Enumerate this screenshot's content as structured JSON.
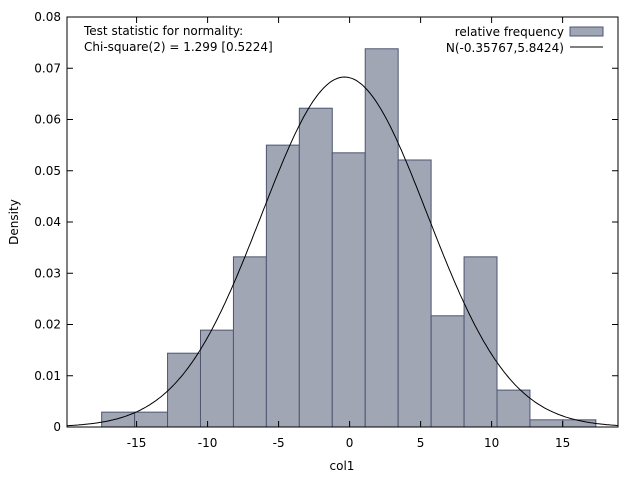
{
  "chart_data": {
    "type": "bar",
    "title": "",
    "xlabel": "col1",
    "ylabel": "Density",
    "xlim": [
      -19.9,
      18.9
    ],
    "ylim": [
      0,
      0.08
    ],
    "xticks": [
      "-15",
      "-10",
      "-5",
      "0",
      "5",
      "10",
      "15"
    ],
    "xtick_values": [
      -15,
      -10,
      -5,
      0,
      5,
      10,
      15
    ],
    "yticks": [
      "0",
      "0.01",
      "0.02",
      "0.03",
      "0.04",
      "0.05",
      "0.06",
      "0.07",
      "0.08"
    ],
    "ytick_values": [
      0,
      0.01,
      0.02,
      0.03,
      0.04,
      0.05,
      0.06,
      0.07,
      0.08
    ],
    "bin_start": -17.46,
    "bin_width": 2.32,
    "values": [
      0.0029,
      0.0029,
      0.0144,
      0.0189,
      0.0332,
      0.055,
      0.0622,
      0.0535,
      0.0738,
      0.0521,
      0.0217,
      0.0332,
      0.0072,
      0.0014,
      0.0014
    ],
    "bar_color": "#a0a6b4",
    "bar_edge": "#4d5570",
    "normal": {
      "mean": -0.35767,
      "sd": 5.8424
    },
    "legend": {
      "placement": "top-right",
      "entries": [
        "relative frequency",
        "N(-0.35767,5.8424)"
      ]
    },
    "annotation": [
      "Test statistic for normality:",
      "Chi-square(2) = 1.299 [0.5224]"
    ]
  }
}
